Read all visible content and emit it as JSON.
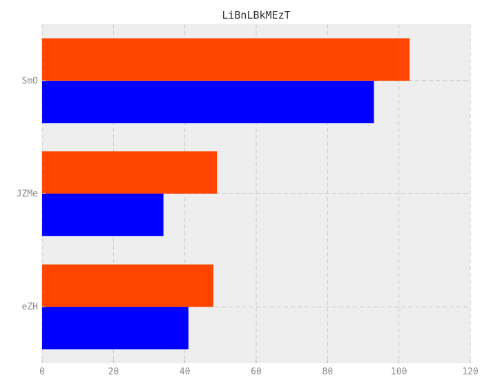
{
  "chart_data": {
    "type": "bar",
    "orientation": "horizontal",
    "title": "LiBnLBkMEzT",
    "xlabel": "",
    "ylabel": "",
    "categories": [
      "eZH",
      "JZMe",
      "SmO"
    ],
    "series": [
      {
        "values": [
          41,
          34,
          93
        ],
        "color": "#0000ff"
      },
      {
        "values": [
          48,
          49,
          103
        ],
        "color": "#ff4500"
      }
    ],
    "xlim": [
      0,
      120
    ],
    "x_ticks": [
      0,
      20,
      40,
      60,
      80,
      100,
      120
    ],
    "grid": true,
    "legend": "none",
    "background": "#eeeeee"
  }
}
